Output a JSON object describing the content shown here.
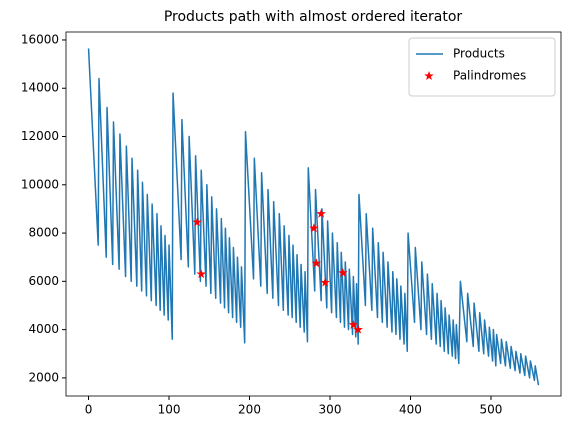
{
  "chart_data": {
    "type": "line",
    "title": "Products path with almost ordered iterator",
    "xlim": [
      -28,
      587
    ],
    "ylim": [
      1250,
      16330
    ],
    "xticks": [
      0,
      100,
      200,
      300,
      400,
      500
    ],
    "yticks": [
      2000,
      4000,
      6000,
      8000,
      10000,
      12000,
      14000,
      16000
    ],
    "legend": "upper right",
    "series": [
      {
        "name": "Products",
        "color": "#1f77b4",
        "x": [
          0,
          12,
          13,
          22,
          23,
          30,
          31,
          38,
          39,
          46,
          47,
          53,
          54,
          60,
          61,
          66,
          67,
          72,
          73,
          78,
          79,
          84,
          85,
          89,
          90,
          94,
          95,
          99,
          100,
          104,
          105,
          115,
          116,
          124,
          125,
          132,
          133,
          139,
          140,
          146,
          147,
          152,
          153,
          158,
          159,
          164,
          165,
          169,
          170,
          174,
          175,
          179,
          180,
          184,
          185,
          189,
          190,
          194,
          195,
          205,
          206,
          214,
          215,
          222,
          223,
          229,
          230,
          236,
          237,
          242,
          243,
          248,
          249,
          253,
          254,
          258,
          259,
          263,
          264,
          268,
          269,
          272,
          273,
          281,
          282,
          289,
          290,
          296,
          297,
          302,
          303,
          308,
          309,
          313,
          314,
          318,
          319,
          323,
          324,
          328,
          329,
          332,
          333,
          335,
          336,
          344,
          345,
          352,
          353,
          359,
          360,
          365,
          366,
          371,
          372,
          377,
          378,
          382,
          383,
          387,
          388,
          392,
          393,
          396,
          397,
          405,
          406,
          413,
          414,
          420,
          421,
          426,
          427,
          432,
          433,
          437,
          438,
          442,
          443,
          447,
          448,
          452,
          453,
          456,
          457,
          460,
          462,
          470,
          471,
          478,
          479,
          485,
          486,
          491,
          492,
          497,
          498,
          502,
          503,
          506,
          507,
          512,
          513,
          518,
          519,
          524,
          525,
          530,
          531,
          536,
          537,
          542,
          543,
          548,
          549,
          554,
          555,
          559
        ],
        "values": [
          15650,
          7500,
          14400,
          7000,
          13200,
          6700,
          12600,
          6500,
          12100,
          6200,
          11600,
          6000,
          11100,
          5800,
          10600,
          5600,
          10100,
          5400,
          9600,
          5200,
          9200,
          5000,
          8800,
          4800,
          8300,
          4600,
          7900,
          4400,
          7500,
          3600,
          13800,
          6900,
          12700,
          6600,
          12000,
          6300,
          11200,
          6000,
          10600,
          5800,
          10000,
          5500,
          9500,
          5300,
          9000,
          5100,
          8600,
          4900,
          8200,
          4700,
          7800,
          4500,
          7400,
          4300,
          7000,
          4100,
          6600,
          3450,
          12200,
          6100,
          11100,
          5800,
          10500,
          5500,
          9800,
          5300,
          9300,
          5000,
          8800,
          4800,
          8300,
          4600,
          7900,
          4500,
          7500,
          4300,
          7100,
          4100,
          6700,
          3900,
          6400,
          3500,
          10700,
          5600,
          9800,
          5200,
          9000,
          4900,
          8500,
          4700,
          8000,
          4500,
          7600,
          4300,
          7200,
          4100,
          6800,
          4000,
          6500,
          3800,
          6200,
          3700,
          5900,
          3400,
          9600,
          5000,
          8800,
          4800,
          8200,
          4500,
          7600,
          4300,
          7200,
          4100,
          6800,
          3900,
          6400,
          3800,
          6100,
          3600,
          5800,
          3400,
          5500,
          3100,
          8000,
          4300,
          7400,
          4000,
          6800,
          3800,
          6300,
          3600,
          5900,
          3400,
          5500,
          3300,
          5200,
          3100,
          4900,
          3000,
          4600,
          2900,
          4400,
          2800,
          4200,
          2600,
          6000,
          3500,
          5500,
          3300,
          5100,
          3100,
          4700,
          3000,
          4400,
          2900,
          4100,
          2700,
          4000,
          2500,
          3800,
          2600,
          3600,
          2500,
          3500,
          2400,
          3300,
          2300,
          3100,
          2200,
          3000,
          2100,
          2900,
          2000,
          2700,
          1900,
          2500,
          1700
        ]
      },
      {
        "name": "Palindromes",
        "color": "#ff0000",
        "marker": "*",
        "x": [
          135,
          140,
          280,
          283,
          289,
          294,
          316,
          329,
          335
        ],
        "values": [
          8450,
          6300,
          8200,
          6750,
          8800,
          5950,
          6350,
          4200,
          4000
        ]
      }
    ]
  }
}
